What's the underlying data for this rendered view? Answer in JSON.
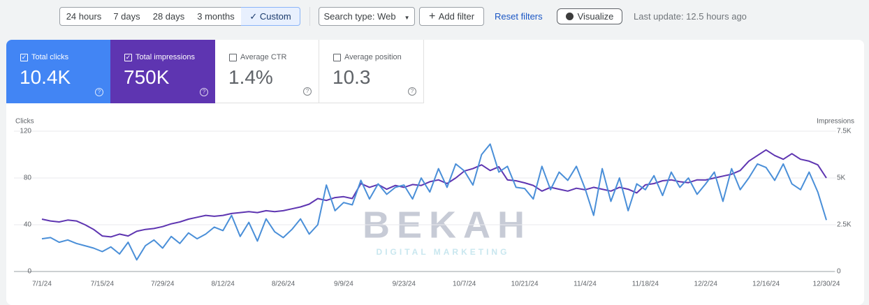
{
  "toolbar": {
    "ranges": [
      "24 hours",
      "7 days",
      "28 days",
      "3 months",
      "Custom"
    ],
    "search_type": "Search type: Web",
    "add_filter": "Add filter",
    "reset": "Reset filters",
    "visualize": "Visualize",
    "last_update": "Last update: 12.5 hours ago"
  },
  "metrics": [
    {
      "value": "10.4K"
    },
    {
      "value": "750K"
    },
    {
      "label": "Average CTR",
      "value": "1.4%"
    },
    {
      "label": "Average position",
      "value": "10.3"
    }
  ],
  "watermark": {
    "name": "BEKAH",
    "tagline": "DIGITAL MARKETING"
  },
  "chart_data": {
    "type": "line",
    "y_label": "Clicks",
    "y2_label": "Impressions",
    "categories": [
      "7/1/24",
      null,
      null,
      null,
      null,
      null,
      null,
      "7/15/24",
      null,
      null,
      null,
      null,
      null,
      null,
      "7/29/24",
      null,
      null,
      null,
      null,
      null,
      null,
      "8/12/24",
      null,
      null,
      null,
      null,
      null,
      null,
      "8/26/24",
      null,
      null,
      null,
      null,
      null,
      null,
      "9/9/24",
      null,
      null,
      null,
      null,
      null,
      null,
      "9/23/24",
      null,
      null,
      null,
      null,
      null,
      null,
      "10/7/24",
      null,
      null,
      null,
      null,
      null,
      null,
      "10/21/24",
      null,
      null,
      null,
      null,
      null,
      null,
      "11/4/24",
      null,
      null,
      null,
      null,
      null,
      null,
      "11/18/24",
      null,
      null,
      null,
      null,
      null,
      null,
      "12/2/24",
      null,
      null,
      null,
      null,
      null,
      null,
      "12/16/24",
      null,
      null,
      null,
      null,
      null,
      null,
      "12/30/24"
    ],
    "series": [
      {
        "name": "Total clicks",
        "color": "#4a8fd8",
        "values": [
          28,
          29,
          25,
          27,
          24,
          22,
          20,
          17,
          21,
          15,
          25,
          10,
          22,
          27,
          20,
          30,
          24,
          33,
          28,
          32,
          38,
          35,
          48,
          30,
          42,
          26,
          45,
          34,
          29,
          36,
          45,
          32,
          40,
          74,
          52,
          59,
          57,
          78,
          62,
          75,
          66,
          72,
          74,
          62,
          80,
          68,
          88,
          72,
          92,
          86,
          74,
          100,
          109,
          85,
          90,
          72,
          71,
          62,
          90,
          70,
          85,
          78,
          90,
          71,
          48,
          88,
          60,
          80,
          52,
          75,
          70,
          82,
          65,
          85,
          72,
          80,
          66,
          75,
          85,
          60,
          88,
          70,
          80,
          92,
          89,
          78,
          92,
          75,
          70,
          85,
          68,
          44
        ]
      },
      {
        "name": "Total impressions",
        "color": "#5e35b1",
        "axis": "y2",
        "values": [
          2800,
          2700,
          2650,
          2750,
          2700,
          2500,
          2250,
          1900,
          1850,
          2000,
          1900,
          2150,
          2250,
          2300,
          2400,
          2550,
          2650,
          2800,
          2900,
          3000,
          2950,
          3000,
          3100,
          3150,
          3200,
          3150,
          3250,
          3200,
          3250,
          3350,
          3450,
          3600,
          3900,
          3800,
          3950,
          4000,
          3900,
          4700,
          4500,
          4650,
          4400,
          4600,
          4500,
          4650,
          4600,
          4800,
          4900,
          4700,
          5000,
          5370,
          5500,
          5700,
          5400,
          5600,
          4900,
          4850,
          4740,
          4600,
          4300,
          4500,
          4400,
          4300,
          4450,
          4370,
          4500,
          4400,
          4300,
          4500,
          4400,
          4200,
          4630,
          4700,
          4850,
          4900,
          4800,
          4750,
          4900,
          4890,
          5000,
          5100,
          5200,
          5400,
          5900,
          6200,
          6500,
          6200,
          6000,
          6300,
          6000,
          5900,
          5700,
          5000
        ]
      }
    ],
    "ylim": [
      0,
      120
    ],
    "yticks": [
      0,
      40,
      80,
      120
    ],
    "y2lim": [
      0,
      7500
    ],
    "y2ticks": [
      0,
      {
        "value": 2500,
        "label": "2.5K"
      },
      {
        "value": 5000,
        "label": "5K"
      },
      {
        "value": 7500,
        "label": "7.5K"
      }
    ],
    "grid": true
  }
}
